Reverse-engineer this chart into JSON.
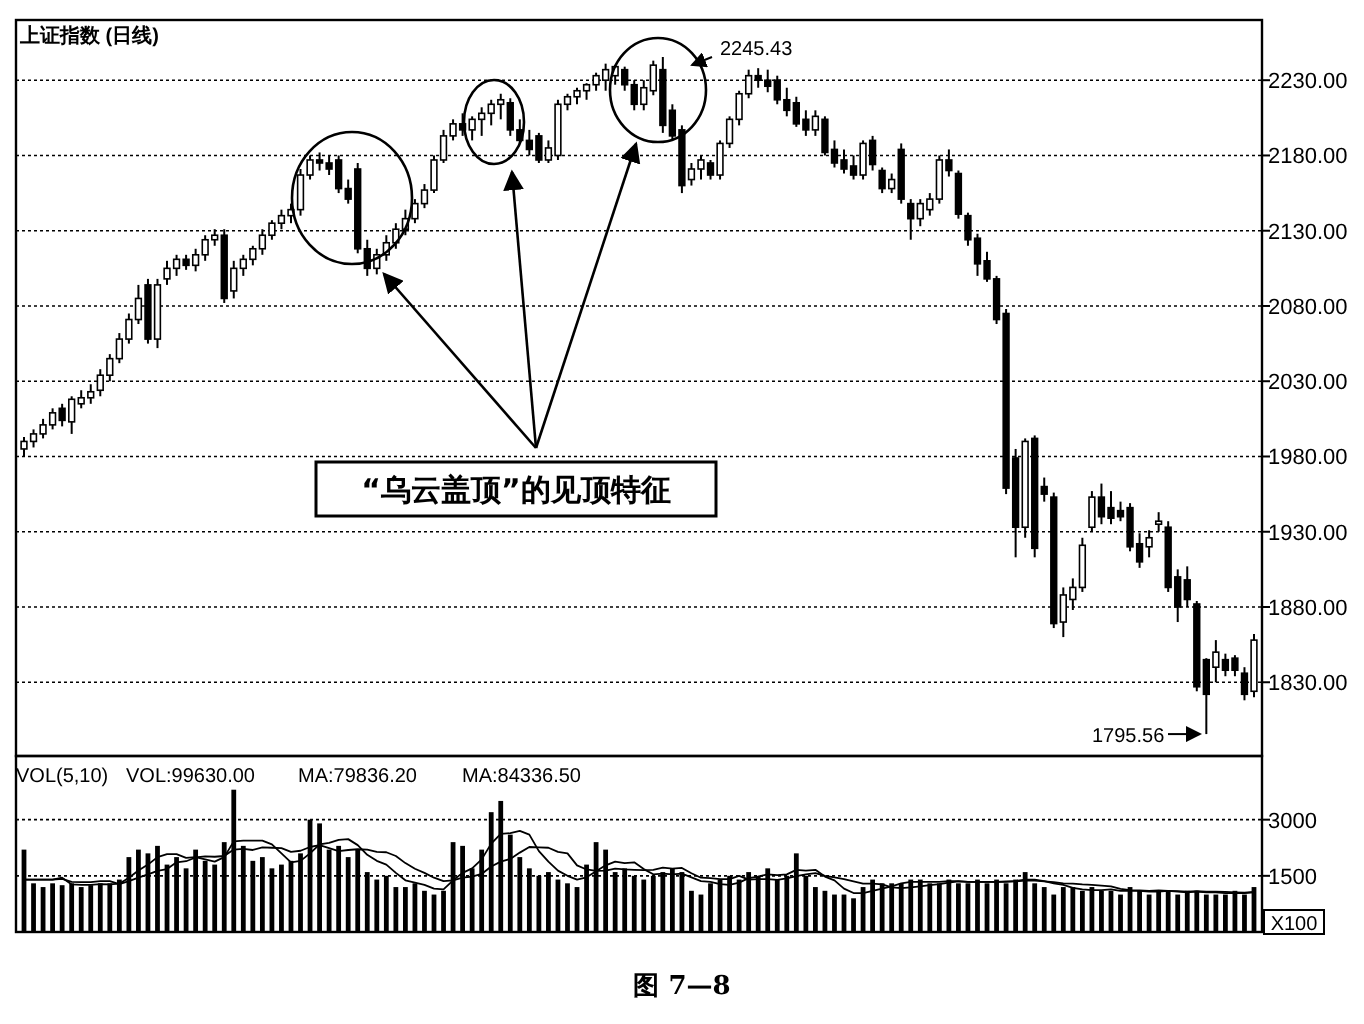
{
  "chart_data": [
    {
      "type": "candlestick",
      "title": "上证指数 (日线)",
      "categories": [
        null,
        null,
        null,
        null,
        null,
        null,
        null,
        null,
        null,
        null,
        null,
        null,
        null,
        null,
        null,
        null,
        null,
        null,
        null,
        null,
        null,
        null,
        null,
        null,
        null,
        null,
        null,
        null,
        null,
        null,
        null,
        null,
        null,
        null,
        null,
        null,
        null,
        null,
        null,
        null,
        null,
        null,
        null,
        null,
        null,
        null,
        null,
        null,
        null,
        null,
        null,
        null,
        null,
        null,
        null,
        null,
        null,
        null,
        null,
        null,
        null,
        null,
        null,
        null,
        null,
        null,
        null,
        null,
        null,
        null,
        null,
        null,
        null,
        null,
        null,
        null,
        null,
        null,
        null,
        null,
        null,
        null,
        null,
        null,
        null,
        null,
        null,
        null,
        null,
        null,
        null,
        null,
        null,
        null,
        null,
        null,
        null,
        null,
        null,
        null,
        null,
        null,
        null,
        null,
        null,
        null,
        null,
        null,
        null,
        null,
        null,
        null,
        null,
        null,
        null,
        null,
        null,
        null,
        null,
        null,
        null,
        null,
        null,
        null,
        null,
        null,
        null,
        null,
        null,
        null
      ],
      "ohlc": [
        [
          1985,
          1993,
          1980,
          1990
        ],
        [
          1990,
          1998,
          1986,
          1995
        ],
        [
          1995,
          2005,
          1992,
          2001
        ],
        [
          2001,
          2012,
          1998,
          2009
        ],
        [
          2012,
          2015,
          2000,
          2004
        ],
        [
          2003,
          2020,
          1995,
          2018
        ],
        [
          2015,
          2024,
          2012,
          2019
        ],
        [
          2019,
          2028,
          2015,
          2023
        ],
        [
          2024,
          2038,
          2020,
          2034
        ],
        [
          2034,
          2048,
          2030,
          2045
        ],
        [
          2045,
          2062,
          2042,
          2058
        ],
        [
          2058,
          2075,
          2055,
          2071
        ],
        [
          2071,
          2094,
          2068,
          2085
        ],
        [
          2094,
          2098,
          2055,
          2058
        ],
        [
          2058,
          2098,
          2052,
          2094
        ],
        [
          2098,
          2110,
          2094,
          2105
        ],
        [
          2105,
          2114,
          2100,
          2111
        ],
        [
          2111,
          2114,
          2104,
          2107
        ],
        [
          2107,
          2118,
          2103,
          2114
        ],
        [
          2114,
          2127,
          2110,
          2124
        ],
        [
          2124,
          2131,
          2120,
          2127
        ],
        [
          2127,
          2131,
          2082,
          2085
        ],
        [
          2090,
          2110,
          2085,
          2105
        ],
        [
          2105,
          2114,
          2100,
          2111
        ],
        [
          2111,
          2120,
          2107,
          2118
        ],
        [
          2118,
          2131,
          2114,
          2127
        ],
        [
          2127,
          2137,
          2124,
          2135
        ],
        [
          2135,
          2144,
          2131,
          2140
        ],
        [
          2140,
          2148,
          2135,
          2144
        ],
        [
          2144,
          2171,
          2140,
          2167
        ],
        [
          2167,
          2180,
          2164,
          2177
        ],
        [
          2177,
          2182,
          2170,
          2175
        ],
        [
          2175,
          2180,
          2167,
          2171
        ],
        [
          2177,
          2180,
          2155,
          2158
        ],
        [
          2158,
          2164,
          2148,
          2151
        ],
        [
          2171,
          2175,
          2115,
          2118
        ],
        [
          2118,
          2124,
          2100,
          2105
        ],
        [
          2105,
          2118,
          2101,
          2114
        ],
        [
          2114,
          2127,
          2110,
          2122
        ],
        [
          2122,
          2135,
          2118,
          2131
        ],
        [
          2131,
          2144,
          2127,
          2138
        ],
        [
          2138,
          2151,
          2135,
          2148
        ],
        [
          2148,
          2161,
          2145,
          2157
        ],
        [
          2157,
          2180,
          2155,
          2177
        ],
        [
          2177,
          2197,
          2175,
          2193
        ],
        [
          2193,
          2204,
          2190,
          2201
        ],
        [
          2201,
          2208,
          2193,
          2197
        ],
        [
          2197,
          2206,
          2190,
          2204
        ],
        [
          2204,
          2212,
          2193,
          2208
        ],
        [
          2208,
          2217,
          2200,
          2214
        ],
        [
          2214,
          2221,
          2204,
          2217
        ],
        [
          2215,
          2218,
          2193,
          2197
        ],
        [
          2197,
          2204,
          2188,
          2190
        ],
        [
          2190,
          2197,
          2180,
          2184
        ],
        [
          2193,
          2195,
          2175,
          2177
        ],
        [
          2177,
          2190,
          2175,
          2185
        ],
        [
          2180,
          2217,
          2177,
          2214
        ],
        [
          2214,
          2221,
          2210,
          2219
        ],
        [
          2219,
          2225,
          2214,
          2223
        ],
        [
          2223,
          2228,
          2217,
          2227
        ],
        [
          2227,
          2235,
          2223,
          2233
        ],
        [
          2230,
          2241,
          2223,
          2237
        ],
        [
          2233,
          2240,
          2227,
          2239
        ],
        [
          2237,
          2239,
          2223,
          2227
        ],
        [
          2227,
          2230,
          2210,
          2214
        ],
        [
          2214,
          2230,
          2210,
          2225
        ],
        [
          2223,
          2243,
          2220,
          2240
        ],
        [
          2237,
          2245.43,
          2195,
          2200
        ],
        [
          2210,
          2214,
          2190,
          2193
        ],
        [
          2197,
          2200,
          2155,
          2160
        ],
        [
          2164,
          2175,
          2160,
          2171
        ],
        [
          2171,
          2180,
          2164,
          2177
        ],
        [
          2175,
          2177,
          2164,
          2167
        ],
        [
          2167,
          2190,
          2164,
          2188
        ],
        [
          2188,
          2206,
          2185,
          2204
        ],
        [
          2204,
          2223,
          2200,
          2221
        ],
        [
          2221,
          2237,
          2218,
          2233
        ],
        [
          2233,
          2238,
          2225,
          2230
        ],
        [
          2230,
          2237,
          2222,
          2226
        ],
        [
          2230,
          2233,
          2214,
          2217
        ],
        [
          2217,
          2225,
          2206,
          2210
        ],
        [
          2215,
          2219,
          2199,
          2201
        ],
        [
          2204,
          2210,
          2193,
          2197
        ],
        [
          2197,
          2210,
          2193,
          2206
        ],
        [
          2204,
          2206,
          2180,
          2182
        ],
        [
          2184,
          2190,
          2172,
          2175
        ],
        [
          2177,
          2184,
          2168,
          2171
        ],
        [
          2173,
          2180,
          2164,
          2167
        ],
        [
          2167,
          2190,
          2164,
          2188
        ],
        [
          2190,
          2193,
          2170,
          2174
        ],
        [
          2170,
          2172,
          2155,
          2158
        ],
        [
          2158,
          2168,
          2155,
          2164
        ],
        [
          2184,
          2188,
          2148,
          2151
        ],
        [
          2148,
          2151,
          2124,
          2138
        ],
        [
          2138,
          2151,
          2133,
          2148
        ],
        [
          2144,
          2155,
          2140,
          2151
        ],
        [
          2151,
          2180,
          2148,
          2177
        ],
        [
          2177,
          2184,
          2166,
          2170
        ],
        [
          2168,
          2170,
          2138,
          2141
        ],
        [
          2140,
          2142,
          2120,
          2124
        ],
        [
          2125,
          2128,
          2100,
          2108
        ],
        [
          2110,
          2116,
          2096,
          2098
        ],
        [
          2098,
          2100,
          2068,
          2071
        ],
        [
          2075,
          2078,
          1955,
          1959
        ],
        [
          1979,
          1985,
          1913,
          1933
        ],
        [
          1933,
          1992,
          1926,
          1990
        ],
        [
          1992,
          1994,
          1913,
          1919
        ],
        [
          1960,
          1966,
          1950,
          1955
        ],
        [
          1953,
          1956,
          1866,
          1869
        ],
        [
          1870,
          1893,
          1860,
          1888
        ],
        [
          1885,
          1899,
          1878,
          1893
        ],
        [
          1893,
          1926,
          1890,
          1921
        ],
        [
          1933,
          1957,
          1930,
          1953
        ],
        [
          1953,
          1962,
          1935,
          1940
        ],
        [
          1946,
          1957,
          1935,
          1939
        ],
        [
          1944,
          1950,
          1937,
          1940
        ],
        [
          1946,
          1949,
          1917,
          1920
        ],
        [
          1922,
          1929,
          1906,
          1910
        ],
        [
          1920,
          1931,
          1913,
          1926
        ],
        [
          1935,
          1943,
          1930,
          1937
        ],
        [
          1933,
          1937,
          1890,
          1893
        ],
        [
          1900,
          1905,
          1870,
          1880
        ],
        [
          1898,
          1907,
          1880,
          1885
        ],
        [
          1882,
          1884,
          1824,
          1827
        ],
        [
          1845,
          1846,
          1795.56,
          1822
        ],
        [
          1840,
          1858,
          1830,
          1850
        ],
        [
          1845,
          1849,
          1834,
          1838
        ],
        [
          1846,
          1848,
          1834,
          1838
        ],
        [
          1836,
          1840,
          1818,
          1822
        ],
        [
          1824,
          1862,
          1820,
          1858
        ]
      ],
      "ylim": [
        1781,
        2270
      ],
      "yticks": [
        {
          "value": 1830,
          "label": "1830.00"
        },
        {
          "value": 1880,
          "label": "1880.00"
        },
        {
          "value": 1930,
          "label": "1930.00"
        },
        {
          "value": 1980,
          "label": "1980.00"
        },
        {
          "value": 2030,
          "label": "2030.00"
        },
        {
          "value": 2080,
          "label": "2080.00"
        },
        {
          "value": 2130,
          "label": "2130.00"
        },
        {
          "value": 2180,
          "label": "2180.00"
        },
        {
          "value": 2230,
          "label": "2230.00"
        }
      ],
      "grid": "y",
      "annotations": [
        "“乌云盖顶”的见顶特征",
        "2245.43",
        "1795.56",
        "图 7—8"
      ]
    },
    {
      "type": "bar",
      "title": "VOL(5,10)",
      "ylabel": "X100",
      "annotations": [
        "VOL:99630.00",
        "MA:79836.20",
        "MA:84336.50"
      ],
      "categories": [
        null,
        null,
        null,
        null,
        null,
        null,
        null,
        null,
        null,
        null,
        null,
        null,
        null,
        null,
        null,
        null,
        null,
        null,
        null,
        null,
        null,
        null,
        null,
        null,
        null,
        null,
        null,
        null,
        null,
        null,
        null,
        null,
        null,
        null,
        null,
        null,
        null,
        null,
        null,
        null,
        null,
        null,
        null,
        null,
        null,
        null,
        null,
        null,
        null,
        null,
        null,
        null,
        null,
        null,
        null,
        null,
        null,
        null,
        null,
        null,
        null,
        null,
        null,
        null,
        null,
        null,
        null,
        null,
        null,
        null,
        null,
        null,
        null,
        null,
        null,
        null,
        null,
        null,
        null,
        null,
        null,
        null,
        null,
        null,
        null,
        null,
        null,
        null,
        null,
        null,
        null,
        null,
        null,
        null,
        null,
        null,
        null,
        null,
        null,
        null,
        null,
        null,
        null,
        null,
        null,
        null,
        null,
        null,
        null,
        null,
        null,
        null,
        null,
        null,
        null,
        null,
        null,
        null,
        null,
        null,
        null,
        null,
        null,
        null,
        null,
        null,
        null,
        null,
        null,
        null
      ],
      "ylim": [
        0,
        4700
      ],
      "yticks": [
        1500,
        3000
      ],
      "grid": "y",
      "series": [
        {
          "color": "#000000",
          "values": [
            2200,
            1300,
            1200,
            1300,
            1250,
            1300,
            1200,
            1250,
            1300,
            1300,
            1400,
            2000,
            2200,
            2100,
            2300,
            1800,
            2000,
            1700,
            2200,
            1900,
            1800,
            2400,
            3800,
            2300,
            1900,
            2000,
            1700,
            1800,
            1900,
            2100,
            3000,
            2900,
            2200,
            2300,
            2000,
            2200,
            1600,
            1400,
            1500,
            1200,
            1200,
            1300,
            1100,
            1000,
            1100,
            2400,
            2300,
            1700,
            2200,
            3200,
            3500,
            2600,
            2000,
            1700,
            1500,
            1600,
            1400,
            1300,
            1200,
            1800,
            2400,
            2200,
            1600,
            1700,
            1500,
            1400,
            1500,
            1600,
            1700,
            1600,
            1100,
            1000,
            1300,
            1400,
            1500,
            1400,
            1600,
            1500,
            1700,
            1400,
            1500,
            2100,
            1500,
            1200,
            1100,
            1000,
            1000,
            900,
            1200,
            1400,
            1300,
            1300,
            1300,
            1400,
            1400,
            1300,
            1300,
            1400,
            1300,
            1300,
            1400,
            1300,
            1400,
            1300,
            1400,
            1600,
            1300,
            1200,
            1000,
            1200,
            1200,
            1100,
            1200,
            1100,
            1100,
            1000,
            1200,
            1100,
            1000,
            1100,
            1100,
            1000,
            1100,
            1100,
            1000,
            1000,
            1000,
            1100,
            1000,
            1200
          ]
        },
        {
          "type": "line",
          "color": "#000000",
          "values": [
            1400,
            1400,
            1400,
            1400,
            1450,
            1270,
            1260,
            1260,
            1280,
            1270,
            1290,
            1450,
            1640,
            1800,
            2000,
            2080,
            2080,
            1980,
            2000,
            1940,
            1880,
            2000,
            2420,
            2440,
            2440,
            2440,
            2340,
            2100,
            1860,
            1900,
            2100,
            2340,
            2380,
            2460,
            2480,
            2320,
            2060,
            1900,
            1800,
            1580,
            1380,
            1320,
            1260,
            1160,
            1140,
            1380,
            1580,
            1700,
            1940,
            2360,
            2620,
            2640,
            2700,
            2600,
            2160,
            1880,
            1640,
            1500,
            1400,
            1460,
            1620,
            1780,
            1880,
            1840,
            1860,
            1680,
            1540,
            1560,
            1540,
            1560,
            1460,
            1360,
            1340,
            1280,
            1260,
            1320,
            1440,
            1480,
            1540,
            1520,
            1540,
            1660,
            1640,
            1660,
            1480,
            1380,
            1160,
            1040,
            1040,
            1100,
            1160,
            1220,
            1300,
            1340,
            1340,
            1340,
            1340,
            1360,
            1360,
            1340,
            1340,
            1340,
            1340,
            1340,
            1360,
            1400,
            1400,
            1360,
            1300,
            1260,
            1180,
            1140,
            1120,
            1120,
            1140,
            1100,
            1100,
            1100,
            1080,
            1080,
            1100,
            1080,
            1060,
            1080,
            1060,
            1060,
            1040,
            1040,
            1040,
            1060
          ]
        },
        {
          "type": "line",
          "color": "#000000",
          "values": [
            1400,
            1400,
            1400,
            1400,
            1420,
            1340,
            1330,
            1330,
            1360,
            1360,
            1280,
            1360,
            1450,
            1540,
            1630,
            1680,
            1860,
            1890,
            1990,
            2020,
            2010,
            2030,
            2200,
            2220,
            2190,
            2260,
            2250,
            2240,
            2140,
            2170,
            2270,
            2320,
            2240,
            2160,
            2190,
            2210,
            2200,
            2140,
            2130,
            2030,
            1840,
            1690,
            1580,
            1450,
            1360,
            1380,
            1450,
            1480,
            1550,
            1750,
            1880,
            1950,
            2120,
            2270,
            2260,
            2250,
            2140,
            2100,
            1780,
            1670,
            1630,
            1640,
            1690,
            1670,
            1660,
            1650,
            1660,
            1720,
            1690,
            1710,
            1570,
            1450,
            1440,
            1410,
            1410,
            1500,
            1400,
            1410,
            1410,
            1390,
            1430,
            1490,
            1540,
            1570,
            1500,
            1460,
            1410,
            1350,
            1290,
            1290,
            1270,
            1190,
            1170,
            1190,
            1220,
            1250,
            1280,
            1320,
            1350,
            1340,
            1340,
            1340,
            1340,
            1350,
            1350,
            1370,
            1370,
            1350,
            1330,
            1300,
            1290,
            1270,
            1260,
            1240,
            1220,
            1150,
            1120,
            1110,
            1100,
            1110,
            1100,
            1090,
            1080,
            1090,
            1080,
            1080,
            1070,
            1060,
            1050,
            1070
          ]
        }
      ]
    }
  ]
}
